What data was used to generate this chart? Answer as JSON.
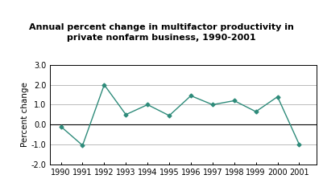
{
  "title": "Annual percent change in multifactor productivity in\nprivate nonfarm business, 1990-2001",
  "ylabel": "Percent change",
  "years": [
    1990,
    1991,
    1992,
    1993,
    1994,
    1995,
    1996,
    1997,
    1998,
    1999,
    2000,
    2001
  ],
  "values": [
    -0.1,
    -1.05,
    2.0,
    0.5,
    1.0,
    0.45,
    1.45,
    1.0,
    1.2,
    0.65,
    1.4,
    -1.0
  ],
  "line_color": "#2e8b7a",
  "marker": "D",
  "marker_size": 2.5,
  "ylim": [
    -2.0,
    3.0
  ],
  "yticks": [
    -2.0,
    -1.0,
    0.0,
    1.0,
    2.0,
    3.0
  ],
  "ytick_labels": [
    "-2.0",
    "-1.0",
    "0.0",
    "1.0",
    "2.0",
    "3.0"
  ],
  "background_color": "#ffffff",
  "plot_bg_color": "#ffffff",
  "grid_color": "#b0b0b0",
  "title_fontsize": 8,
  "axis_label_fontsize": 7.5,
  "tick_fontsize": 7,
  "linewidth": 1.0,
  "xlim_left": 1989.5,
  "xlim_right": 2001.8
}
